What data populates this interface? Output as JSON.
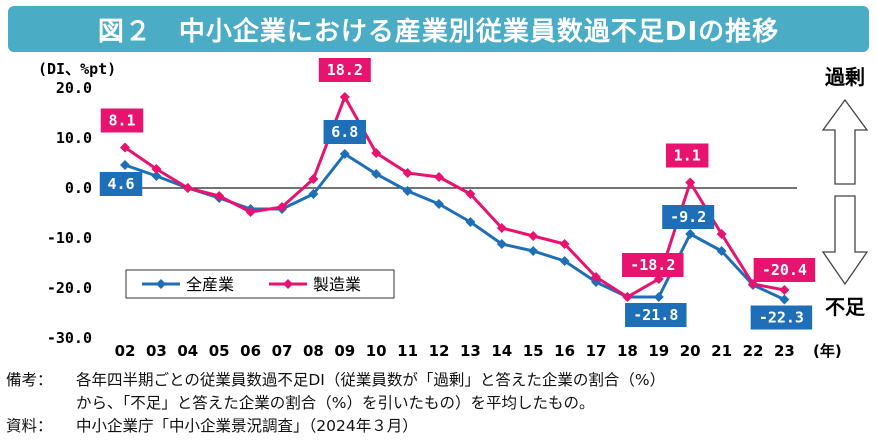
{
  "header": {
    "title": "図２　中小企業における産業別従業員数過不足DIの推移",
    "background": "#4BACC6"
  },
  "chart_data": {
    "type": "line",
    "ylabel": "(DI、%pt)",
    "xlabel": "(年)",
    "x": [
      "02",
      "03",
      "04",
      "05",
      "06",
      "07",
      "08",
      "09",
      "10",
      "11",
      "12",
      "13",
      "14",
      "15",
      "16",
      "17",
      "18",
      "19",
      "20",
      "21",
      "22",
      "23"
    ],
    "yticks": [
      "20.0",
      "10.0",
      "0.0",
      "-10.0",
      "-20.0",
      "-30.0"
    ],
    "ylim": [
      -30,
      20
    ],
    "grid": false,
    "legend_position": "bottom-left",
    "series": [
      {
        "name": "全産業",
        "color": "#1F6FB8",
        "values": [
          4.6,
          2.4,
          0,
          -2.0,
          -4.2,
          -4.2,
          -1.2,
          6.8,
          2.8,
          -0.6,
          -3.2,
          -6.8,
          -11.2,
          -12.6,
          -14.6,
          -18.8,
          -21.8,
          -21.8,
          -9.2,
          -12.6,
          -19.4,
          -22.3
        ]
      },
      {
        "name": "製造業",
        "color": "#E8136E",
        "values": [
          8.1,
          3.8,
          0,
          -1.6,
          -4.8,
          -3.8,
          1.8,
          18.2,
          7.0,
          3.0,
          2.2,
          -1.2,
          -8.0,
          -9.6,
          -11.2,
          -17.8,
          -21.8,
          -18.2,
          1.1,
          -9.2,
          -19.2,
          -20.4
        ]
      }
    ],
    "data_labels": [
      {
        "series": "製造業",
        "x": "02",
        "text": "8.1"
      },
      {
        "series": "全産業",
        "x": "02",
        "text": "4.6"
      },
      {
        "series": "製造業",
        "x": "09",
        "text": "18.2"
      },
      {
        "series": "全産業",
        "x": "09",
        "text": "6.8"
      },
      {
        "series": "製造業",
        "x": "20",
        "text": "1.1"
      },
      {
        "series": "全産業",
        "x": "20",
        "text": "-9.2"
      },
      {
        "series": "製造業",
        "x": "19",
        "text": "-18.2"
      },
      {
        "series": "全産業",
        "x": "19",
        "text": "-21.8"
      },
      {
        "series": "製造業",
        "x": "23",
        "text": "-20.4"
      },
      {
        "series": "全産業",
        "x": "23",
        "text": "-22.3"
      }
    ],
    "annotations": {
      "surplus": "過剰",
      "shortage": "不足"
    }
  },
  "notes": {
    "remarks_label": "備考：",
    "remarks_line1": "各年四半期ごとの従業員数過不足DI（従業員数が「過剰」と答えた企業の割合（%）",
    "remarks_line2": "から、「不足」と答えた企業の割合（%）を引いたもの）を平均したもの。",
    "source_label": "資料：",
    "source": "中小企業庁「中小企業景況調査」（2024年３月）"
  }
}
